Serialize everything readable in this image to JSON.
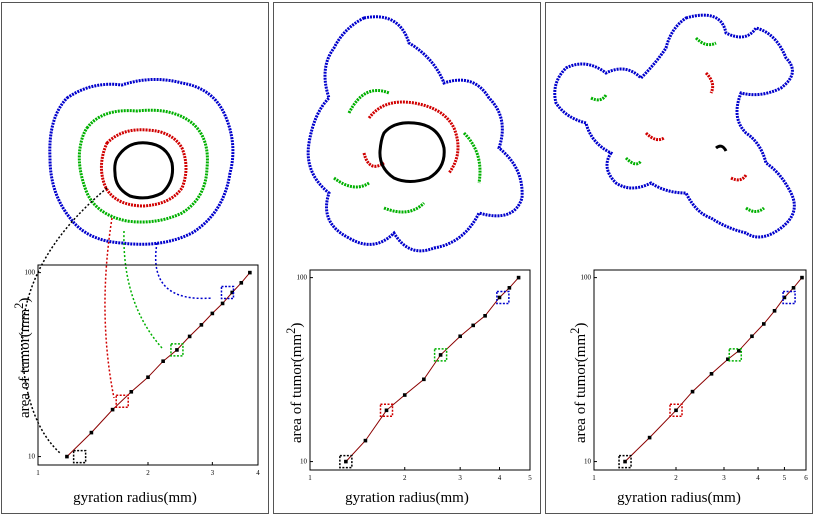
{
  "figure": {
    "panels": [
      {
        "id": "panel-1",
        "xlabel": "gyration radius(mm)",
        "ylabel": "area of tumor(mm",
        "ylabel_sup": "2",
        "ylabel_end": ")"
      },
      {
        "id": "panel-2",
        "xlabel": "gyration radius(mm)",
        "ylabel": "area of tumor(mm",
        "ylabel_sup": "2",
        "ylabel_end": ")"
      },
      {
        "id": "panel-3",
        "xlabel": "gyration radius(mm)",
        "ylabel": "area of tumor(mm",
        "ylabel_sup": "2",
        "ylabel_end": ")"
      }
    ]
  },
  "chart_data": [
    {
      "type": "scatter",
      "xscale": "log",
      "yscale": "log",
      "xlim": [
        1,
        4
      ],
      "ylim": [
        9,
        110
      ],
      "x_ticks": [
        "1",
        "2",
        "3",
        "4"
      ],
      "y_ticks": [
        "10",
        "100"
      ],
      "x": [
        1.2,
        1.4,
        1.6,
        1.8,
        2.0,
        2.2,
        2.4,
        2.6,
        2.8,
        3.0,
        3.2,
        3.4,
        3.6,
        3.8
      ],
      "y": [
        10,
        13.5,
        18,
        22.5,
        27,
        33,
        38,
        45,
        52,
        60,
        68,
        78,
        88,
        100
      ],
      "highlighted": [
        {
          "x": 1.3,
          "y": 10,
          "color": "#000000"
        },
        {
          "x": 1.7,
          "y": 20,
          "color": "#d00000"
        },
        {
          "x": 2.4,
          "y": 38,
          "color": "#00b000"
        },
        {
          "x": 3.3,
          "y": 78,
          "color": "#0000cc"
        }
      ]
    },
    {
      "type": "scatter",
      "xscale": "log",
      "yscale": "log",
      "xlim": [
        1,
        5
      ],
      "ylim": [
        9,
        110
      ],
      "x_ticks": [
        "1",
        "2",
        "3",
        "4",
        "5"
      ],
      "y_ticks": [
        "10",
        "100"
      ],
      "x": [
        1.3,
        1.5,
        1.75,
        2.0,
        2.3,
        2.6,
        3.0,
        3.3,
        3.6,
        4.0,
        4.3,
        4.6
      ],
      "y": [
        10,
        13,
        19,
        23,
        28,
        38,
        48,
        55,
        62,
        78,
        88,
        100
      ],
      "highlighted": [
        {
          "x": 1.3,
          "y": 10,
          "color": "#000000"
        },
        {
          "x": 1.75,
          "y": 19,
          "color": "#d00000"
        },
        {
          "x": 2.6,
          "y": 38,
          "color": "#00b000"
        },
        {
          "x": 4.1,
          "y": 78,
          "color": "#0000cc"
        }
      ]
    },
    {
      "type": "scatter",
      "xscale": "log",
      "yscale": "log",
      "xlim": [
        1,
        6
      ],
      "ylim": [
        9,
        110
      ],
      "x_ticks": [
        "1",
        "2",
        "3",
        "4",
        "5",
        "6"
      ],
      "y_ticks": [
        "10",
        "100"
      ],
      "x": [
        1.3,
        1.6,
        2.0,
        2.3,
        2.7,
        3.1,
        3.4,
        3.8,
        4.2,
        4.6,
        5.0,
        5.4,
        5.8
      ],
      "y": [
        10,
        13.5,
        19,
        24,
        30,
        36,
        40,
        48,
        56,
        66,
        78,
        88,
        100
      ],
      "highlighted": [
        {
          "x": 1.3,
          "y": 10,
          "color": "#000000"
        },
        {
          "x": 2.0,
          "y": 19,
          "color": "#d00000"
        },
        {
          "x": 3.3,
          "y": 38,
          "color": "#00b000"
        },
        {
          "x": 5.2,
          "y": 78,
          "color": "#0000cc"
        }
      ]
    }
  ],
  "colors": {
    "black": "#000000",
    "red": "#d00000",
    "green": "#00b000",
    "blue": "#0000cc",
    "chart_line": "#8b0000"
  }
}
